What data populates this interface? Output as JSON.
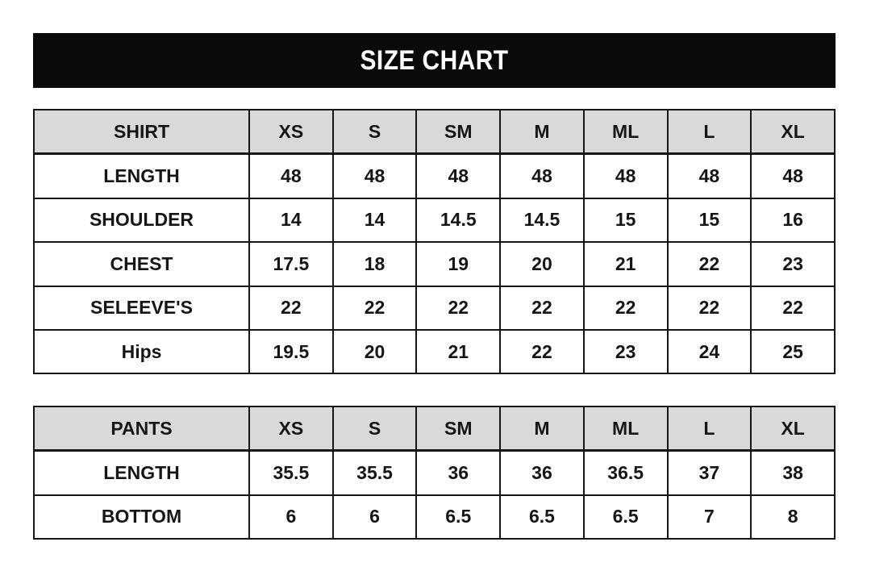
{
  "title": "SIZE CHART",
  "colors": {
    "title_bg": "#0a0a0a",
    "title_text": "#ffffff",
    "header_bg": "#d9d9d9",
    "border": "#161616",
    "page_bg": "#ffffff"
  },
  "chart_data": [
    {
      "type": "table",
      "title": "SHIRT",
      "columns": [
        "SHIRT",
        "XS",
        "S",
        "SM",
        "M",
        "ML",
        "L",
        "XL"
      ],
      "rows": [
        [
          "LENGTH",
          "48",
          "48",
          "48",
          "48",
          "48",
          "48",
          "48"
        ],
        [
          "SHOULDER",
          "14",
          "14",
          "14.5",
          "14.5",
          "15",
          "15",
          "16"
        ],
        [
          "CHEST",
          "17.5",
          "18",
          "19",
          "20",
          "21",
          "22",
          "23"
        ],
        [
          "SELEEVE'S",
          "22",
          "22",
          "22",
          "22",
          "22",
          "22",
          "22"
        ],
        [
          "Hips",
          "19.5",
          "20",
          "21",
          "22",
          "23",
          "24",
          "25"
        ]
      ]
    },
    {
      "type": "table",
      "title": "PANTS",
      "columns": [
        "PANTS",
        "XS",
        "S",
        "SM",
        "M",
        "ML",
        "L",
        "XL"
      ],
      "rows": [
        [
          "LENGTH",
          "35.5",
          "35.5",
          "36",
          "36",
          "36.5",
          "37",
          "38"
        ],
        [
          "BOTTOM",
          "6",
          "6",
          "6.5",
          "6.5",
          "6.5",
          "7",
          "8"
        ]
      ]
    }
  ]
}
